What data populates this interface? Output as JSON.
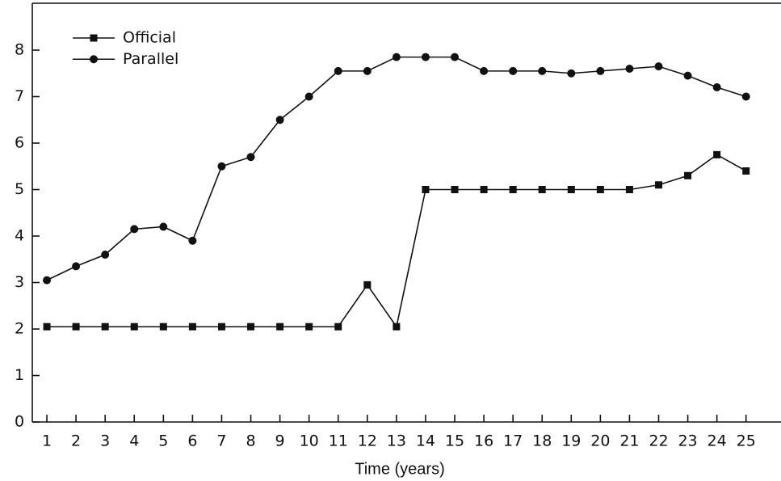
{
  "chart_data": {
    "type": "line",
    "x": [
      1,
      2,
      3,
      4,
      5,
      6,
      7,
      8,
      9,
      10,
      11,
      12,
      13,
      14,
      15,
      16,
      17,
      18,
      19,
      20,
      21,
      22,
      23,
      24,
      25
    ],
    "series": [
      {
        "name": "Official",
        "color": "#111111",
        "marker": "square",
        "values": [
          2.05,
          2.05,
          2.05,
          2.05,
          2.05,
          2.05,
          2.05,
          2.05,
          2.05,
          2.05,
          2.05,
          2.95,
          2.05,
          5.0,
          5.0,
          5.0,
          5.0,
          5.0,
          5.0,
          5.0,
          5.0,
          5.1,
          5.3,
          5.75,
          5.4
        ]
      },
      {
        "name": "Parallel",
        "color": "#111111",
        "marker": "circle",
        "values": [
          3.05,
          3.35,
          3.6,
          4.15,
          4.2,
          3.9,
          5.5,
          5.7,
          6.5,
          7.0,
          7.55,
          7.55,
          7.85,
          7.85,
          7.85,
          7.55,
          7.55,
          7.55,
          7.5,
          7.55,
          7.6,
          7.65,
          7.45,
          7.2,
          7.0
        ]
      }
    ],
    "xlabel": "Time (years)",
    "xlim": [
      0.5,
      26.2
    ],
    "xticks": [
      1,
      2,
      3,
      4,
      5,
      6,
      7,
      8,
      9,
      10,
      11,
      12,
      13,
      14,
      15,
      16,
      17,
      18,
      19,
      20,
      21,
      22,
      23,
      24,
      25
    ],
    "ylim": [
      0,
      9
    ],
    "yticks": [
      0,
      1,
      2,
      3,
      4,
      5,
      6,
      7,
      8
    ],
    "legend": "top-left",
    "grid": false
  }
}
